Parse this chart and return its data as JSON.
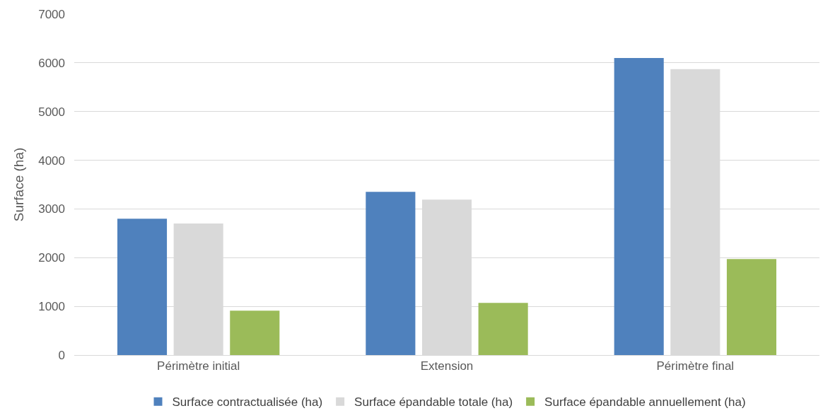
{
  "chart_data": {
    "type": "bar",
    "ylabel": "Surface (ha)",
    "categories": [
      "Périmètre initial",
      "Extension",
      "Périmètre final"
    ],
    "series": [
      {
        "name": "Surface contractualisée (ha)",
        "color": "#4f81bd",
        "values": [
          2800,
          3350,
          6100
        ]
      },
      {
        "name": "Surface épandable totale (ha)",
        "color": "#d9d9d9",
        "values": [
          2700,
          3190,
          5870
        ]
      },
      {
        "name": "Surface épandable annuellement (ha)",
        "color": "#9bbb59",
        "values": [
          910,
          1070,
          1970
        ]
      }
    ],
    "ylim": [
      0,
      7000
    ],
    "yticks": [
      0,
      1000,
      2000,
      3000,
      4000,
      5000,
      6000,
      7000
    ],
    "grid": "y",
    "legend": "bottom"
  }
}
